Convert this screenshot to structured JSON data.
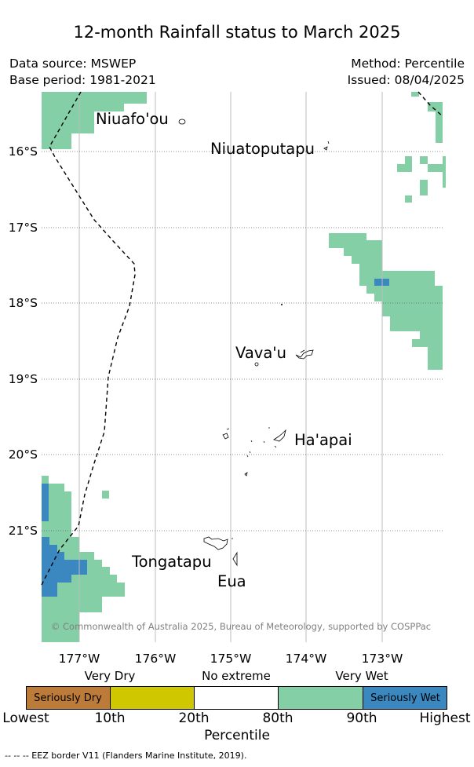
{
  "title": "12-month Rainfall status to March 2025",
  "data_source": "Data source: MSWEP",
  "base_period": "Base period: 1981-2021",
  "method": "Method: Percentile",
  "issued": "Issued: 08/04/2025",
  "latitude_labels": [
    "16°S",
    "17°S",
    "18°S",
    "19°S",
    "20°S",
    "21°S"
  ],
  "longitude_labels": [
    "177°W",
    "176°W",
    "175°W",
    "174°W",
    "173°W"
  ],
  "places": [
    "Niuafo'ou",
    "Niuatoputapu",
    "Vava'u",
    "Ha'apai",
    "Tongatapu",
    "Eua"
  ],
  "copyright": "© Commonwealth of Australia 2025, Bureau of Meteorology, supported by COSPPac",
  "legend": {
    "categories": [
      "Very Dry",
      "No extreme",
      "Very Wet"
    ],
    "boxes": [
      {
        "label": "Seriously Dry",
        "color": "#bd7b3a"
      },
      {
        "label": "",
        "color": "#cfc800"
      },
      {
        "label": "",
        "color": "#ffffff"
      },
      {
        "label": "",
        "color": "#84cfa6"
      },
      {
        "label": "Seriously Wet",
        "color": "#3a88bf"
      }
    ],
    "ticks": [
      "Lowest",
      "10th",
      "20th",
      "80th",
      "90th",
      "Highest"
    ],
    "axis_label": "Percentile"
  },
  "eez_note": "--  --  -- EEZ border V11 (Flanders Marine Institute, 2019)."
}
